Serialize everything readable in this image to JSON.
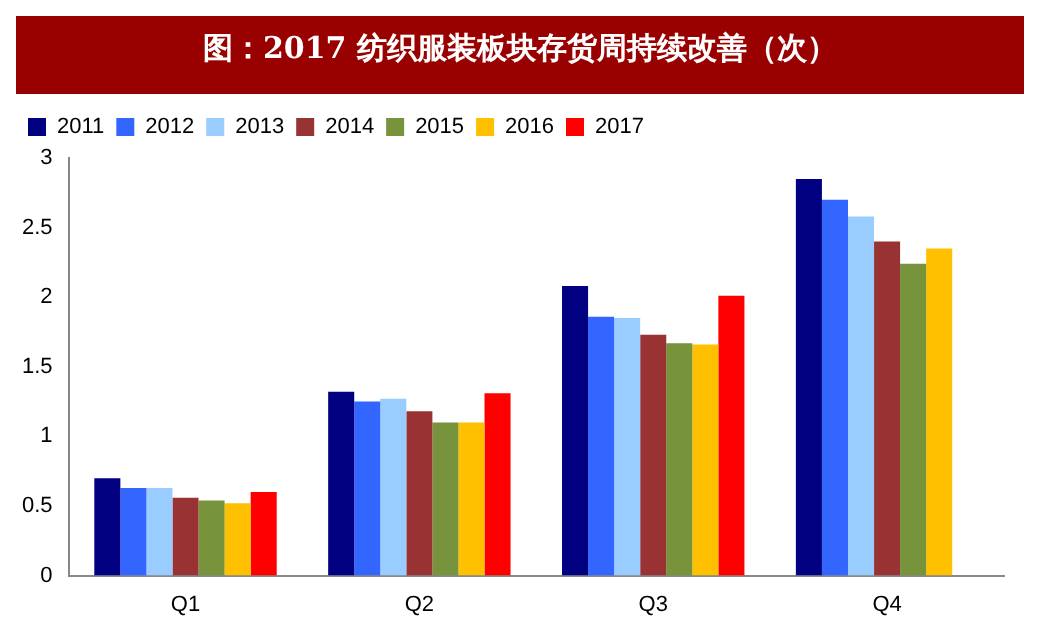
{
  "chart_data": {
    "type": "bar",
    "title": "图：2017 纺织服装板块存货周持续改善（次）",
    "categories": [
      "Q1",
      "Q2",
      "Q3",
      "Q4"
    ],
    "series": [
      {
        "name": "2011",
        "color": "#000080",
        "values": [
          0.7,
          1.32,
          2.08,
          2.85
        ]
      },
      {
        "name": "2012",
        "color": "#3366ff",
        "values": [
          0.63,
          1.25,
          1.86,
          2.7
        ]
      },
      {
        "name": "2013",
        "color": "#99ccff",
        "values": [
          0.63,
          1.27,
          1.85,
          2.58
        ]
      },
      {
        "name": "2014",
        "color": "#993333",
        "values": [
          0.56,
          1.18,
          1.73,
          2.4
        ]
      },
      {
        "name": "2015",
        "color": "#77933c",
        "values": [
          0.54,
          1.1,
          1.67,
          2.24
        ]
      },
      {
        "name": "2016",
        "color": "#ffc000",
        "values": [
          0.52,
          1.1,
          1.66,
          2.35
        ]
      },
      {
        "name": "2017",
        "color": "#ff0000",
        "values": [
          0.6,
          1.31,
          2.01,
          null
        ]
      }
    ],
    "ylim": [
      0,
      3
    ],
    "yticks": [
      0,
      0.5,
      1,
      1.5,
      2,
      2.5,
      3
    ],
    "grid": false,
    "legend": "top"
  }
}
